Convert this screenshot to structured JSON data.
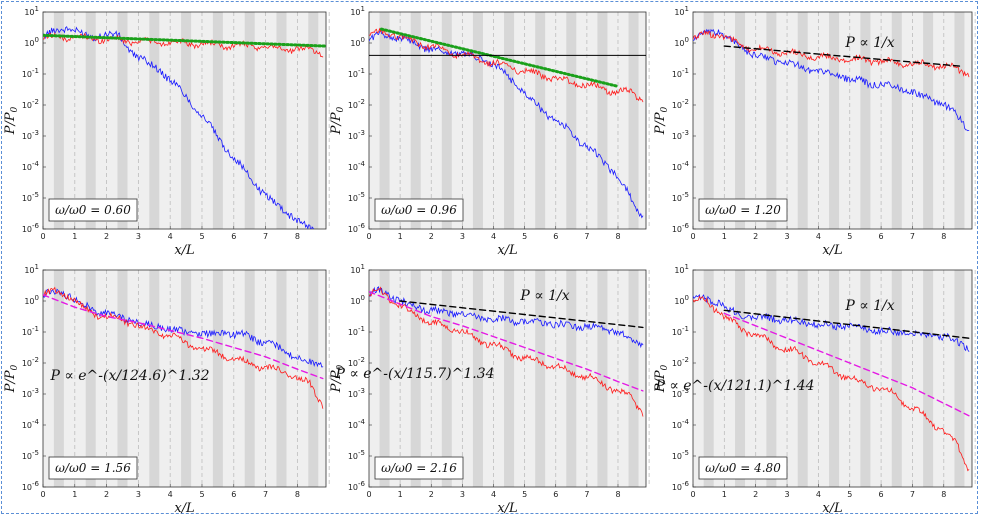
{
  "figure": {
    "xlabel": "x/L",
    "ylabel": "P/P",
    "ylabel_sub": "0",
    "x_ticks": [
      "0",
      "1",
      "2",
      "3",
      "4",
      "5",
      "6",
      "7",
      "8"
    ],
    "y_tick_base": "10",
    "y_exponents": [
      "1",
      "0",
      "-1",
      "-2",
      "-3",
      "-4",
      "-5",
      "-6"
    ]
  },
  "colors": {
    "panel_bg": "#efefef",
    "band": "#d2d2d2",
    "blue": "#1a1aff",
    "red": "#ff1a1a",
    "green_fit": "#1aa01a",
    "magenta_fit": "#e41ae4",
    "black_fit": "#000000",
    "frame": "#5b8fd6"
  },
  "chart_data": [
    {
      "type": "line",
      "title": "",
      "xlabel": "x/L",
      "ylabel": "P/P0",
      "xlim": [
        0,
        8.9
      ],
      "ylim_log10": [
        -6,
        1
      ],
      "label": "ω/ω0 = 0.60",
      "series": [
        {
          "name": "blue",
          "x": [
            0,
            0.4,
            0.8,
            1.2,
            1.6,
            2,
            2.4,
            2.8,
            3.2,
            3.6,
            4,
            4.4,
            4.8,
            5.2,
            5.6,
            6,
            6.4,
            6.8,
            7.2,
            7.6,
            8,
            8.4,
            8.8
          ],
          "log10": [
            0.2,
            0.4,
            0.5,
            0.3,
            0.2,
            0.3,
            0.2,
            -0.3,
            -0.6,
            -0.8,
            -1.2,
            -1.6,
            -2.1,
            -2.6,
            -3.2,
            -3.7,
            -4.2,
            -4.7,
            -5.1,
            -5.4,
            -5.7,
            -6.0,
            -6.2
          ]
        },
        {
          "name": "red",
          "x": [
            0,
            0.4,
            0.8,
            1.2,
            1.6,
            2,
            2.4,
            2.8,
            3.2,
            3.6,
            4,
            4.4,
            4.8,
            5.2,
            5.6,
            6,
            6.4,
            6.8,
            7.2,
            7.6,
            8,
            8.4,
            8.8
          ],
          "log10": [
            0.15,
            0.2,
            0.2,
            0.15,
            0.15,
            0.12,
            0.1,
            0.08,
            0.05,
            0.03,
            0.02,
            0,
            -0.02,
            -0.05,
            -0.07,
            -0.08,
            -0.1,
            -0.12,
            -0.15,
            -0.18,
            -0.2,
            -0.22,
            -0.3
          ]
        },
        {
          "name": "green fit",
          "x": [
            0,
            8.9
          ],
          "log10": [
            0.25,
            -0.1
          ],
          "style": "dotted"
        }
      ]
    },
    {
      "type": "line",
      "title": "",
      "xlabel": "x/L",
      "ylabel": "P/P0",
      "xlim": [
        0,
        8.9
      ],
      "ylim_log10": [
        -6,
        1
      ],
      "label": "ω/ω0 = 0.96",
      "series": [
        {
          "name": "blue",
          "x": [
            0,
            0.4,
            0.8,
            1.2,
            1.6,
            2,
            2.4,
            2.8,
            3.2,
            3.6,
            4,
            4.4,
            4.8,
            5.2,
            5.6,
            6,
            6.4,
            6.8,
            7.2,
            7.6,
            8,
            8.4,
            8.8
          ],
          "log10": [
            0.1,
            0.3,
            0.2,
            0.1,
            -0.1,
            -0.2,
            -0.3,
            -0.3,
            -0.4,
            -0.5,
            -0.7,
            -1.0,
            -1.4,
            -1.8,
            -2.2,
            -2.5,
            -2.8,
            -3.2,
            -3.5,
            -3.9,
            -4.3,
            -5.0,
            -5.6
          ]
        },
        {
          "name": "red",
          "x": [
            0,
            0.4,
            0.8,
            1.2,
            1.6,
            2,
            2.4,
            2.8,
            3.2,
            3.6,
            4,
            4.4,
            4.8,
            5.2,
            5.6,
            6,
            6.4,
            6.8,
            7.2,
            7.6,
            8,
            8.4,
            8.8
          ],
          "log10": [
            0.2,
            0.35,
            0.3,
            0.1,
            0,
            -0.1,
            -0.25,
            -0.35,
            -0.45,
            -0.55,
            -0.65,
            -0.75,
            -0.85,
            -0.95,
            -1.05,
            -1.15,
            -1.25,
            -1.3,
            -1.4,
            -1.5,
            -1.55,
            -1.6,
            -1.8
          ]
        },
        {
          "name": "green fit",
          "x": [
            0.4,
            8
          ],
          "log10": [
            0.45,
            -1.4
          ],
          "style": "dotted"
        },
        {
          "name": "horizontal reference",
          "x": [
            0,
            8.9
          ],
          "log10": [
            -0.4,
            -0.4
          ],
          "style": "solid"
        }
      ]
    },
    {
      "type": "line",
      "title": "",
      "xlabel": "x/L",
      "ylabel": "P/P0",
      "xlim": [
        0,
        8.9
      ],
      "ylim_log10": [
        -6,
        1
      ],
      "label": "ω/ω0 = 1.20",
      "annotation": "P ∝ 1/x",
      "series": [
        {
          "name": "blue",
          "x": [
            0,
            0.4,
            0.8,
            1.2,
            1.6,
            2,
            2.4,
            2.8,
            3.2,
            3.6,
            4,
            4.4,
            4.8,
            5.2,
            5.6,
            6,
            6.4,
            6.8,
            7.2,
            7.6,
            8,
            8.4,
            8.8
          ],
          "log10": [
            0.1,
            0.3,
            0.4,
            0.1,
            -0.2,
            -0.4,
            -0.5,
            -0.6,
            -0.7,
            -0.8,
            -0.9,
            -1.0,
            -1.1,
            -1.2,
            -1.3,
            -1.35,
            -1.4,
            -1.5,
            -1.7,
            -1.8,
            -2.0,
            -2.3,
            -2.8
          ]
        },
        {
          "name": "red",
          "x": [
            0,
            0.4,
            0.8,
            1.2,
            1.6,
            2,
            2.4,
            2.8,
            3.2,
            3.6,
            4,
            4.4,
            4.8,
            5.2,
            5.6,
            6,
            6.4,
            6.8,
            7.2,
            7.6,
            8,
            8.4,
            8.8
          ],
          "log10": [
            0.1,
            0.3,
            0.3,
            0.05,
            -0.1,
            -0.2,
            -0.25,
            -0.3,
            -0.35,
            -0.4,
            -0.45,
            -0.5,
            -0.5,
            -0.55,
            -0.55,
            -0.6,
            -0.6,
            -0.65,
            -0.7,
            -0.7,
            -0.75,
            -0.85,
            -1.0
          ]
        },
        {
          "name": "black fit",
          "x": [
            1,
            8.6
          ],
          "log10": [
            -0.1,
            -0.75
          ],
          "style": "dashed"
        }
      ]
    },
    {
      "type": "line",
      "title": "",
      "xlabel": "x/L",
      "ylabel": "P/P0",
      "xlim": [
        0,
        8.9
      ],
      "ylim_log10": [
        -6,
        1
      ],
      "label": "ω/ω0 = 1.56",
      "annotation": "P ∝ e^-(x/124.6)^1.32",
      "series": [
        {
          "name": "blue",
          "x": [
            0,
            0.4,
            0.8,
            1.2,
            1.6,
            2,
            2.4,
            2.8,
            3.2,
            3.6,
            4,
            4.4,
            4.8,
            5.2,
            5.6,
            6,
            6.4,
            6.8,
            7.2,
            7.6,
            8,
            8.4,
            8.8
          ],
          "log10": [
            0.2,
            0.3,
            0.2,
            -0.1,
            -0.3,
            -0.4,
            -0.5,
            -0.6,
            -0.8,
            -0.8,
            -0.9,
            -1.0,
            -1.0,
            -1.1,
            -1.0,
            -1.1,
            -1.1,
            -1.3,
            -1.4,
            -1.6,
            -1.8,
            -2.0,
            -2.0
          ]
        },
        {
          "name": "red",
          "x": [
            0,
            0.4,
            0.8,
            1.2,
            1.6,
            2,
            2.4,
            2.8,
            3.2,
            3.6,
            4,
            4.4,
            4.8,
            5.2,
            5.6,
            6,
            6.4,
            6.8,
            7.2,
            7.6,
            8,
            8.4,
            8.8
          ],
          "log10": [
            0.2,
            0.3,
            0.2,
            -0.2,
            -0.4,
            -0.5,
            -0.6,
            -0.7,
            -0.9,
            -1.0,
            -1.1,
            -1.3,
            -1.5,
            -1.6,
            -1.7,
            -1.9,
            -2.0,
            -2.1,
            -2.2,
            -2.3,
            -2.5,
            -2.7,
            -3.3
          ]
        },
        {
          "name": "magenta fit",
          "x": [
            0,
            1,
            2,
            3,
            4,
            5,
            6,
            7,
            8,
            8.8
          ],
          "log10": [
            0.2,
            -0.2,
            -0.5,
            -0.7,
            -0.95,
            -1.2,
            -1.5,
            -1.8,
            -2.2,
            -2.5
          ],
          "style": "dashed"
        }
      ]
    },
    {
      "type": "line",
      "title": "",
      "xlabel": "x/L",
      "ylabel": "P/P0",
      "xlim": [
        0,
        8.9
      ],
      "ylim_log10": [
        -6,
        1
      ],
      "label": "ω/ω0 = 2.16",
      "annotation": "P ∝ e^-(x/115.7)^1.34",
      "annotation2": "P ∝ 1/x",
      "series": [
        {
          "name": "blue",
          "x": [
            0,
            0.4,
            0.8,
            1.2,
            1.6,
            2,
            2.4,
            2.8,
            3.2,
            3.6,
            4,
            4.4,
            4.8,
            5.2,
            5.6,
            6,
            6.4,
            6.8,
            7.2,
            7.6,
            8,
            8.4,
            8.8
          ],
          "log10": [
            0.2,
            0.35,
            0.1,
            -0.1,
            -0.2,
            -0.3,
            -0.35,
            -0.4,
            -0.5,
            -0.55,
            -0.6,
            -0.6,
            -0.65,
            -0.7,
            -0.7,
            -0.75,
            -0.8,
            -0.8,
            -0.85,
            -0.9,
            -1.0,
            -1.2,
            -1.4
          ]
        },
        {
          "name": "red",
          "x": [
            0,
            0.4,
            0.8,
            1.2,
            1.6,
            2,
            2.4,
            2.8,
            3.2,
            3.6,
            4,
            4.4,
            4.8,
            5.2,
            5.6,
            6,
            6.4,
            6.8,
            7.2,
            7.6,
            8,
            8.4,
            8.8
          ],
          "log10": [
            0.2,
            0.3,
            0,
            -0.3,
            -0.5,
            -0.7,
            -0.8,
            -0.9,
            -1.1,
            -1.3,
            -1.4,
            -1.6,
            -1.8,
            -1.9,
            -2.0,
            -2.1,
            -2.3,
            -2.4,
            -2.5,
            -2.7,
            -2.9,
            -3.1,
            -3.6
          ]
        },
        {
          "name": "magenta fit",
          "x": [
            0,
            1,
            2,
            3,
            4,
            5,
            6,
            7,
            8,
            8.8
          ],
          "log10": [
            0.3,
            -0.1,
            -0.5,
            -0.8,
            -1.15,
            -1.5,
            -1.85,
            -2.2,
            -2.6,
            -2.9
          ],
          "style": "dashed"
        },
        {
          "name": "black fit",
          "x": [
            1,
            8.8
          ],
          "log10": [
            0,
            -0.85
          ],
          "style": "dashed"
        }
      ]
    },
    {
      "type": "line",
      "title": "",
      "xlabel": "x/L",
      "ylabel": "P/P0",
      "xlim": [
        0,
        8.9
      ],
      "ylim_log10": [
        -6,
        1
      ],
      "label": "ω/ω0 = 4.80",
      "annotation": "P ∝ e^-(x/121.1)^1.44",
      "annotation2": "P ∝ 1/x",
      "series": [
        {
          "name": "blue",
          "x": [
            0,
            0.4,
            0.8,
            1.2,
            1.6,
            2,
            2.4,
            2.8,
            3.2,
            3.6,
            4,
            4.4,
            4.8,
            5.2,
            5.6,
            6,
            6.4,
            6.8,
            7.2,
            7.6,
            8,
            8.4,
            8.8
          ],
          "log10": [
            0.05,
            0.05,
            0,
            -0.35,
            -0.45,
            -0.5,
            -0.55,
            -0.6,
            -0.65,
            -0.7,
            -0.75,
            -0.8,
            -0.8,
            -0.85,
            -0.9,
            -0.95,
            -1.0,
            -1.0,
            -1.05,
            -1.1,
            -1.15,
            -1.3,
            -1.5
          ]
        },
        {
          "name": "red",
          "x": [
            0,
            0.4,
            0.8,
            1.2,
            1.6,
            2,
            2.4,
            2.8,
            3.2,
            3.6,
            4,
            4.4,
            4.8,
            5.2,
            5.6,
            6,
            6.4,
            6.8,
            7.2,
            7.6,
            8,
            8.4,
            8.8
          ],
          "log10": [
            0,
            0,
            -0.3,
            -0.7,
            -0.9,
            -1.1,
            -1.3,
            -1.5,
            -1.6,
            -1.8,
            -2.0,
            -2.2,
            -2.4,
            -2.6,
            -2.7,
            -2.8,
            -3.0,
            -3.3,
            -3.6,
            -3.9,
            -4.2,
            -4.6,
            -5.4
          ]
        },
        {
          "name": "magenta fit",
          "x": [
            1,
            2,
            3,
            4,
            5,
            6,
            7,
            8,
            8.8
          ],
          "log10": [
            -0.4,
            -0.8,
            -1.2,
            -1.6,
            -2.0,
            -2.4,
            -2.8,
            -3.3,
            -3.7
          ],
          "style": "dashed"
        },
        {
          "name": "black fit",
          "x": [
            1,
            8.8
          ],
          "log10": [
            -0.3,
            -1.2
          ],
          "style": "dashed"
        }
      ]
    }
  ]
}
